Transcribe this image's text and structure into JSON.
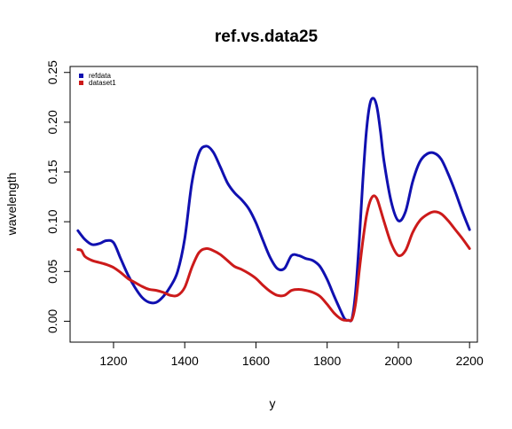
{
  "chart_data": {
    "type": "line",
    "title": "ref.vs.data25",
    "xlabel": "y",
    "ylabel": "wavelength",
    "xlim": [
      1078,
      2222
    ],
    "ylim": [
      -0.021,
      0.256
    ],
    "xticks": [
      1200,
      1400,
      1600,
      1800,
      2000,
      2200
    ],
    "yticks": [
      0.0,
      0.05,
      0.1,
      0.15,
      0.2,
      0.25
    ],
    "xtick_labels": [
      "1200",
      "1400",
      "1600",
      "1800",
      "2000",
      "2200"
    ],
    "ytick_labels": [
      "0.00",
      "0.05",
      "0.10",
      "0.15",
      "0.20",
      "0.25"
    ],
    "grid": false,
    "legend_position": "top-left",
    "series": [
      {
        "name": "refdata",
        "color": "#1010b0",
        "x": [
          1100,
          1120,
          1140,
          1160,
          1180,
          1200,
          1220,
          1240,
          1260,
          1280,
          1300,
          1320,
          1340,
          1360,
          1380,
          1400,
          1420,
          1440,
          1460,
          1480,
          1500,
          1520,
          1540,
          1560,
          1580,
          1600,
          1620,
          1640,
          1660,
          1680,
          1700,
          1720,
          1740,
          1760,
          1780,
          1800,
          1820,
          1840,
          1850,
          1860,
          1870,
          1880,
          1890,
          1900,
          1910,
          1920,
          1930,
          1940,
          1950,
          1960,
          1980,
          2000,
          2020,
          2040,
          2060,
          2080,
          2100,
          2120,
          2140,
          2160,
          2180,
          2200
        ],
        "y": [
          0.091,
          0.082,
          0.077,
          0.078,
          0.081,
          0.079,
          0.063,
          0.047,
          0.034,
          0.024,
          0.019,
          0.019,
          0.025,
          0.035,
          0.05,
          0.083,
          0.139,
          0.169,
          0.176,
          0.17,
          0.155,
          0.139,
          0.129,
          0.122,
          0.113,
          0.099,
          0.081,
          0.064,
          0.053,
          0.053,
          0.066,
          0.066,
          0.063,
          0.061,
          0.055,
          0.042,
          0.025,
          0.009,
          0.002,
          0.001,
          0.003,
          0.03,
          0.08,
          0.14,
          0.19,
          0.218,
          0.224,
          0.215,
          0.19,
          0.16,
          0.12,
          0.101,
          0.11,
          0.14,
          0.16,
          0.168,
          0.169,
          0.163,
          0.148,
          0.13,
          0.11,
          0.092
        ]
      },
      {
        "name": "dataset1",
        "color": "#cc1a1a",
        "x": [
          1100,
          1110,
          1120,
          1140,
          1160,
          1180,
          1200,
          1220,
          1240,
          1260,
          1280,
          1300,
          1320,
          1340,
          1360,
          1380,
          1400,
          1420,
          1440,
          1460,
          1480,
          1500,
          1520,
          1540,
          1560,
          1580,
          1600,
          1620,
          1640,
          1660,
          1680,
          1700,
          1720,
          1740,
          1760,
          1780,
          1800,
          1820,
          1840,
          1850,
          1860,
          1870,
          1880,
          1890,
          1900,
          1910,
          1920,
          1930,
          1940,
          1950,
          1960,
          1980,
          2000,
          2020,
          2040,
          2060,
          2080,
          2100,
          2120,
          2140,
          2160,
          2180,
          2200
        ],
        "y": [
          0.072,
          0.071,
          0.065,
          0.061,
          0.059,
          0.057,
          0.054,
          0.049,
          0.043,
          0.039,
          0.035,
          0.032,
          0.031,
          0.029,
          0.026,
          0.026,
          0.034,
          0.054,
          0.069,
          0.073,
          0.071,
          0.067,
          0.061,
          0.055,
          0.052,
          0.048,
          0.043,
          0.036,
          0.03,
          0.026,
          0.026,
          0.031,
          0.032,
          0.031,
          0.029,
          0.025,
          0.017,
          0.008,
          0.002,
          0.001,
          0.001,
          0.002,
          0.018,
          0.05,
          0.08,
          0.105,
          0.12,
          0.126,
          0.123,
          0.112,
          0.1,
          0.078,
          0.066,
          0.071,
          0.089,
          0.101,
          0.107,
          0.11,
          0.108,
          0.101,
          0.092,
          0.083,
          0.073
        ]
      }
    ]
  }
}
